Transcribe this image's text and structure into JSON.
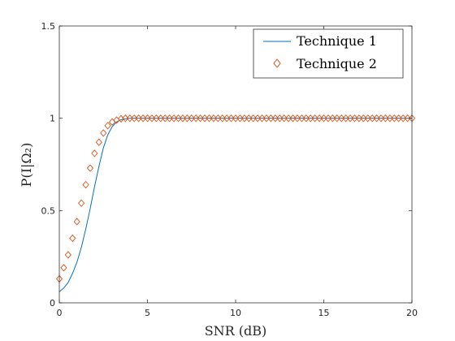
{
  "chart_data": {
    "type": "line",
    "title": "",
    "xlabel": "SNR  (dB)",
    "ylabel": "P(I|Ω₂)",
    "xlim": [
      0,
      20
    ],
    "ylim": [
      0,
      1.5
    ],
    "xticks": [
      0,
      5,
      10,
      15,
      20
    ],
    "xtick_labels": [
      "0",
      "5",
      "10",
      "15",
      "20"
    ],
    "yticks": [
      0,
      0.5,
      1,
      1.5
    ],
    "ytick_labels": [
      "0",
      "0.5",
      "1",
      "1.5"
    ],
    "grid": false,
    "legend_position": "top-right",
    "series": [
      {
        "name": "Technique 1",
        "style": "line",
        "color": "#0072BD",
        "x": [
          0,
          0.25,
          0.5,
          0.75,
          1.0,
          1.25,
          1.5,
          1.75,
          2.0,
          2.25,
          2.5,
          2.75,
          3.0,
          3.25,
          3.5,
          3.75,
          4.0,
          4.5,
          5,
          10,
          15,
          20
        ],
        "y": [
          0.06,
          0.08,
          0.11,
          0.16,
          0.22,
          0.3,
          0.4,
          0.51,
          0.63,
          0.74,
          0.84,
          0.91,
          0.955,
          0.98,
          0.992,
          0.997,
          1.0,
          1.0,
          1.0,
          1.0,
          1.0,
          1.0
        ]
      },
      {
        "name": "Technique 2",
        "style": "markers",
        "marker": "diamond",
        "color": "#D95319",
        "x": [
          0,
          0.25,
          0.5,
          0.75,
          1.0,
          1.25,
          1.5,
          1.75,
          2.0,
          2.25,
          2.5,
          2.75,
          3.0,
          3.25,
          3.5,
          3.75,
          4.0,
          4.25,
          4.5,
          4.75,
          5.0,
          5.25,
          5.5,
          5.75,
          6.0,
          6.25,
          6.5,
          6.75,
          7.0,
          7.25,
          7.5,
          7.75,
          8.0,
          8.25,
          8.5,
          8.75,
          9.0,
          9.25,
          9.5,
          9.75,
          10.0,
          10.25,
          10.5,
          10.75,
          11.0,
          11.25,
          11.5,
          11.75,
          12.0,
          12.25,
          12.5,
          12.75,
          13.0,
          13.25,
          13.5,
          13.75,
          14.0,
          14.25,
          14.5,
          14.75,
          15.0,
          15.25,
          15.5,
          15.75,
          16.0,
          16.25,
          16.5,
          16.75,
          17.0,
          17.25,
          17.5,
          17.75,
          18.0,
          18.25,
          18.5,
          18.75,
          19.0,
          19.25,
          19.5,
          19.75,
          20.0
        ],
        "y": [
          0.13,
          0.19,
          0.26,
          0.35,
          0.44,
          0.54,
          0.64,
          0.73,
          0.81,
          0.87,
          0.92,
          0.96,
          0.98,
          0.99,
          0.997,
          1.0,
          1.0,
          1.0,
          1.0,
          1.0,
          1.0,
          1.0,
          1.0,
          1.0,
          1.0,
          1.0,
          1.0,
          1.0,
          1.0,
          1.0,
          1.0,
          1.0,
          1.0,
          1.0,
          1.0,
          1.0,
          1.0,
          1.0,
          1.0,
          1.0,
          1.0,
          1.0,
          1.0,
          1.0,
          1.0,
          1.0,
          1.0,
          1.0,
          1.0,
          1.0,
          1.0,
          1.0,
          1.0,
          1.0,
          1.0,
          1.0,
          1.0,
          1.0,
          1.0,
          1.0,
          1.0,
          1.0,
          1.0,
          1.0,
          1.0,
          1.0,
          1.0,
          1.0,
          1.0,
          1.0,
          1.0,
          1.0,
          1.0,
          1.0,
          1.0,
          1.0,
          1.0,
          1.0,
          1.0,
          1.0,
          1.0
        ]
      }
    ]
  }
}
